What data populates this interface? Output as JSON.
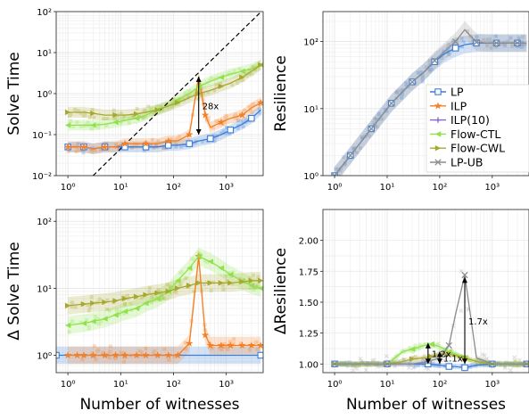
{
  "colors": {
    "LP": "#3a7dd8",
    "ILP": "#f57f24",
    "ILP(10)": "#8a63c9",
    "Flow-CTL": "#8fe24b",
    "Flow-CWL": "#a8a830",
    "LP-UB": "#8c8c8c"
  },
  "legend": [
    "LP",
    "ILP",
    "ILP(10)",
    "Flow-CTL",
    "Flow-CWL",
    "LP-UB"
  ],
  "chart_data": [
    {
      "id": "solve_time",
      "type": "line",
      "ylabel": "Solve Time",
      "xlabel": "",
      "xscale": "log",
      "yscale": "log",
      "xlim": [
        0.6,
        5000
      ],
      "ylim": [
        0.01,
        100
      ],
      "xticks": [
        "10⁰",
        "10¹",
        "10²",
        "10³"
      ],
      "yticks": [
        "10⁻²",
        "10⁻¹",
        "10⁰",
        "10¹",
        "10²"
      ],
      "reference_line": {
        "style": "dashed",
        "from": [
          3,
          0.01
        ],
        "to": [
          4600,
          100
        ]
      },
      "annotation": {
        "text": "28x",
        "x": 300,
        "y_from": 0.1,
        "y_to": 2.6
      },
      "series": [
        {
          "name": "LP",
          "x": [
            1,
            1.5,
            2,
            3,
            5,
            8,
            12,
            20,
            30,
            50,
            80,
            120,
            200,
            300,
            500,
            800,
            1200,
            2000,
            3000,
            4500
          ],
          "y": [
            0.05,
            0.05,
            0.05,
            0.045,
            0.05,
            0.05,
            0.05,
            0.05,
            0.05,
            0.05,
            0.055,
            0.055,
            0.06,
            0.07,
            0.08,
            0.1,
            0.13,
            0.18,
            0.25,
            0.4
          ]
        },
        {
          "name": "ILP",
          "x": [
            1,
            1.5,
            2,
            3,
            5,
            8,
            12,
            20,
            30,
            50,
            80,
            120,
            200,
            300,
            400,
            500,
            800,
            1200,
            2000,
            3000,
            4500
          ],
          "y": [
            0.05,
            0.05,
            0.05,
            0.045,
            0.05,
            0.05,
            0.06,
            0.06,
            0.06,
            0.06,
            0.07,
            0.07,
            0.1,
            2.6,
            0.3,
            0.15,
            0.2,
            0.25,
            0.3,
            0.45,
            0.6
          ]
        },
        {
          "name": "Flow-CTL",
          "x": [
            1,
            2,
            3,
            5,
            8,
            12,
            20,
            30,
            50,
            80,
            120,
            200,
            300,
            500,
            800,
            1200,
            2000,
            3000,
            4500
          ],
          "y": [
            0.17,
            0.17,
            0.17,
            0.18,
            0.2,
            0.22,
            0.25,
            0.3,
            0.4,
            0.5,
            0.7,
            1.0,
            1.5,
            2.0,
            2.5,
            3.0,
            3.5,
            4.0,
            5.0
          ]
        },
        {
          "name": "Flow-CWL",
          "x": [
            1,
            2,
            3,
            5,
            8,
            12,
            20,
            30,
            50,
            80,
            120,
            200,
            300,
            500,
            800,
            1200,
            2000,
            3000,
            4500
          ],
          "y": [
            0.35,
            0.35,
            0.33,
            0.3,
            0.3,
            0.3,
            0.32,
            0.35,
            0.4,
            0.5,
            0.6,
            0.8,
            1.0,
            1.2,
            1.5,
            1.8,
            2.5,
            3.5,
            5.0
          ]
        }
      ]
    },
    {
      "id": "resilience",
      "type": "line",
      "ylabel": "Resilience",
      "xlabel": "",
      "xscale": "log",
      "yscale": "log",
      "xlim": [
        0.6,
        5000
      ],
      "ylim": [
        1,
        280
      ],
      "xticks": [
        "10⁰",
        "10¹",
        "10²",
        "10³"
      ],
      "yticks": [
        "10⁰",
        "10¹",
        "10²"
      ],
      "series": [
        {
          "name": "LP",
          "x": [
            1,
            1.5,
            2,
            3,
            5,
            8,
            12,
            20,
            30,
            50,
            80,
            120,
            200,
            300,
            500,
            800,
            1200,
            2000,
            3000,
            4500
          ],
          "y": [
            1,
            1.5,
            2,
            3,
            5,
            8,
            12,
            18,
            25,
            35,
            50,
            65,
            80,
            90,
            95,
            95,
            95,
            95,
            95,
            95
          ]
        },
        {
          "name": "LP-UB",
          "x": [
            1,
            1.5,
            2,
            3,
            5,
            8,
            12,
            20,
            30,
            50,
            80,
            120,
            200,
            300,
            500,
            800,
            1200,
            2000,
            3000,
            4500
          ],
          "y": [
            1,
            1.5,
            2,
            3,
            5,
            8,
            12,
            18,
            25,
            35,
            52,
            70,
            100,
            150,
            98,
            95,
            95,
            95,
            95,
            95
          ]
        }
      ]
    },
    {
      "id": "delta_solve_time",
      "type": "line",
      "ylabel": "Δ Solve Time",
      "xlabel": "Number of witnesses",
      "xscale": "log",
      "yscale": "log",
      "xlim": [
        0.6,
        5000
      ],
      "ylim": [
        0.55,
        150
      ],
      "xticks": [
        "10⁰",
        "10¹",
        "10²",
        "10³"
      ],
      "yticks": [
        "10⁰",
        "10¹",
        "10²"
      ],
      "series": [
        {
          "name": "LP",
          "x": [
            0.6,
            4500
          ],
          "y": [
            1,
            1
          ]
        },
        {
          "name": "ILP",
          "x": [
            1,
            1.5,
            2,
            3,
            5,
            8,
            12,
            20,
            30,
            50,
            80,
            120,
            200,
            300,
            400,
            500,
            800,
            1200,
            2000,
            3000,
            4500
          ],
          "y": [
            1,
            1,
            1,
            1,
            1,
            1,
            1,
            1,
            1,
            1,
            1,
            1,
            1.5,
            30,
            2,
            1.4,
            1.4,
            1.4,
            1.4,
            1.4,
            1.4
          ]
        },
        {
          "name": "Flow-CTL",
          "x": [
            1,
            2,
            3,
            5,
            8,
            12,
            20,
            30,
            50,
            80,
            120,
            200,
            300,
            500,
            800,
            1200,
            2000,
            3000,
            4500
          ],
          "y": [
            2.8,
            3.0,
            3.2,
            3.5,
            4,
            4.5,
            5,
            6,
            7,
            9,
            13,
            20,
            30,
            25,
            20,
            16,
            13,
            11,
            10
          ]
        },
        {
          "name": "Flow-CWL",
          "x": [
            1,
            2,
            3,
            5,
            8,
            12,
            20,
            30,
            50,
            80,
            120,
            200,
            300,
            500,
            800,
            1200,
            2000,
            3000,
            4500
          ],
          "y": [
            5.5,
            5.8,
            6,
            6.2,
            6.5,
            7,
            7.5,
            8,
            8.5,
            9,
            10,
            11,
            12,
            12,
            12,
            12,
            12.5,
            13,
            13
          ]
        }
      ]
    },
    {
      "id": "delta_resilience",
      "type": "line",
      "ylabel": "ΔResilience",
      "xlabel": "Number of witnesses",
      "xscale": "log",
      "yscale": "linear",
      "xlim": [
        0.6,
        5000
      ],
      "ylim": [
        0.93,
        2.25
      ],
      "xticks": [
        "10⁰",
        "10¹",
        "10²",
        "10³"
      ],
      "yticks": [
        "1.00",
        "1.25",
        "1.50",
        "1.75",
        "2.00"
      ],
      "annotations": [
        {
          "text": "1.2x",
          "x": 60,
          "y_from": 1.0,
          "y_to": 1.17
        },
        {
          "text": "1.1x",
          "x": 100,
          "y_from": 1.0,
          "y_to": 1.1
        },
        {
          "text": "1.7x",
          "x": 300,
          "y_from": 1.0,
          "y_to": 1.7
        }
      ],
      "series": [
        {
          "name": "LP",
          "x": [
            1,
            3,
            10,
            30,
            60,
            100,
            150,
            200,
            300,
            500,
            1000,
            2000,
            4500
          ],
          "y": [
            1,
            1,
            1,
            1,
            1,
            0.99,
            0.98,
            0.98,
            0.97,
            0.99,
            1,
            1,
            1
          ]
        },
        {
          "name": "Flow-CTL",
          "x": [
            1,
            3,
            10,
            20,
            30,
            50,
            70,
            100,
            150,
            200,
            300,
            500,
            1000,
            2000,
            4500
          ],
          "y": [
            1,
            1,
            1,
            1.1,
            1.12,
            1.15,
            1.16,
            1.14,
            1.1,
            1.08,
            1.05,
            1.02,
            1,
            1,
            1
          ]
        },
        {
          "name": "Flow-CWL",
          "x": [
            1,
            3,
            10,
            20,
            30,
            50,
            70,
            100,
            150,
            200,
            300,
            500,
            1000,
            2000,
            4500
          ],
          "y": [
            1,
            1,
            1,
            1.02,
            1.04,
            1.05,
            1.06,
            1.08,
            1.08,
            1.07,
            1.05,
            1.02,
            1,
            1,
            1
          ]
        },
        {
          "name": "LP-UB",
          "x": [
            1,
            3,
            10,
            30,
            60,
            100,
            150,
            200,
            300,
            500,
            1000,
            2000,
            4500
          ],
          "y": [
            1,
            1,
            1,
            1,
            1.02,
            1.05,
            1.15,
            1.4,
            1.72,
            1.05,
            1,
            1,
            1
          ]
        }
      ]
    }
  ]
}
